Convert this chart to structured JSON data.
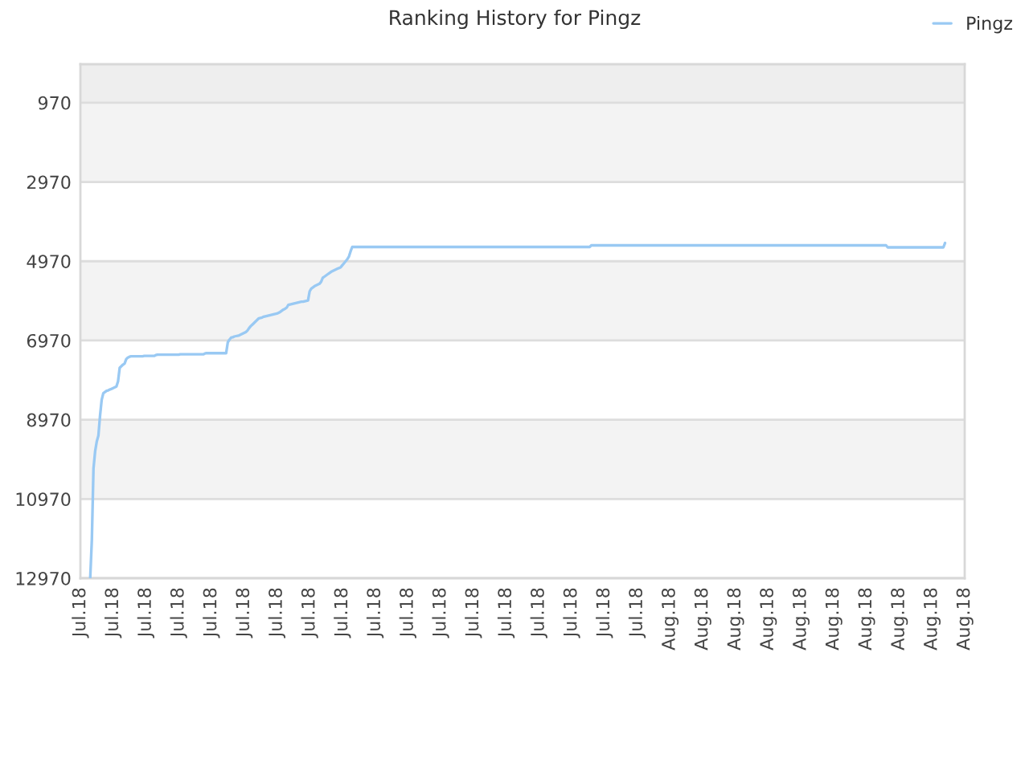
{
  "chart_data": {
    "type": "line",
    "title": "Ranking History for Pingz",
    "categories": [
      "Jul.18",
      null,
      null,
      null,
      null,
      null,
      null,
      null,
      null,
      null,
      null,
      null,
      null,
      null,
      null,
      null,
      null,
      null,
      null,
      null,
      "Jul.18",
      null,
      null,
      null,
      null,
      null,
      null,
      null,
      null,
      null,
      null,
      null,
      null,
      null,
      null,
      null,
      null,
      null,
      null,
      null,
      "Jul.18",
      null,
      null,
      null,
      null,
      null,
      null,
      null,
      null,
      null,
      null,
      null,
      null,
      null,
      null,
      null,
      null,
      null,
      null,
      null,
      "Jul.18",
      null,
      null,
      null,
      null,
      null,
      null,
      null,
      null,
      null,
      null,
      null,
      null,
      null,
      null,
      null,
      null,
      null,
      null,
      null,
      "Jul.18",
      null,
      null,
      null,
      null,
      null,
      null,
      null,
      null,
      null,
      null,
      null,
      null,
      null,
      null,
      null,
      null,
      null,
      null,
      null,
      "Jul.18",
      null,
      null,
      null,
      null,
      null,
      null,
      null,
      null,
      null,
      null,
      null,
      null,
      null,
      null,
      null,
      null,
      null,
      null,
      null,
      "Jul.18",
      null,
      null,
      null,
      null,
      null,
      null,
      null,
      null,
      null,
      null,
      null,
      null,
      null,
      null,
      null,
      null,
      null,
      null,
      null,
      "Jul.18",
      null,
      null,
      null,
      null,
      null,
      null,
      null,
      null,
      null,
      null,
      null,
      null,
      null,
      null,
      null,
      null,
      null,
      null,
      null,
      "Jul.18",
      null,
      null,
      null,
      null,
      null,
      null,
      null,
      null,
      null,
      null,
      null,
      null,
      null,
      null,
      null,
      null,
      null,
      null,
      null,
      "Jul.18",
      null,
      null,
      null,
      null,
      null,
      null,
      null,
      null,
      null,
      null,
      null,
      null,
      null,
      null,
      null,
      null,
      null,
      null,
      null,
      "Jul.18",
      null,
      null,
      null,
      null,
      null,
      null,
      null,
      null,
      null,
      null,
      null,
      null,
      null,
      null,
      null,
      null,
      null,
      null,
      null,
      "Jul.18",
      null,
      null,
      null,
      null,
      null,
      null,
      null,
      null,
      null,
      null,
      null,
      null,
      null,
      null,
      null,
      null,
      null,
      null,
      null,
      "Jul.18",
      null,
      null,
      null,
      null,
      null,
      null,
      null,
      null,
      null,
      null,
      null,
      null,
      null,
      null,
      null,
      null,
      null,
      null,
      null,
      "Jul.18",
      null,
      null,
      null,
      null,
      null,
      null,
      null,
      null,
      null,
      null,
      null,
      null,
      null,
      null,
      null,
      null,
      null,
      null,
      null,
      "Jul.18",
      null,
      null,
      null,
      null,
      null,
      null,
      null,
      null,
      null,
      null,
      null,
      null,
      null,
      null,
      null,
      null,
      null,
      null,
      null,
      "Jul.18",
      null,
      null,
      null,
      null,
      null,
      null,
      null,
      null,
      null,
      null,
      null,
      null,
      null,
      null,
      null,
      null,
      null,
      null,
      null,
      "Jul.18",
      null,
      null,
      null,
      null,
      null,
      null,
      null,
      null,
      null,
      null,
      null,
      null,
      null,
      null,
      null,
      null,
      null,
      null,
      null,
      "Jul.18",
      null,
      null,
      null,
      null,
      null,
      null,
      null,
      null,
      null,
      null,
      null,
      null,
      null,
      null,
      null,
      null,
      null,
      null,
      null,
      "Aug.18",
      null,
      null,
      null,
      null,
      null,
      null,
      null,
      null,
      null,
      null,
      null,
      null,
      null,
      null,
      null,
      null,
      null,
      null,
      null,
      "Aug.18",
      null,
      null,
      null,
      null,
      null,
      null,
      null,
      null,
      null,
      null,
      null,
      null,
      null,
      null,
      null,
      null,
      null,
      null,
      null,
      "Aug.18",
      null,
      null,
      null,
      null,
      null,
      null,
      null,
      null,
      null,
      null,
      null,
      null,
      null,
      null,
      null,
      null,
      null,
      null,
      null,
      "Aug.18",
      null,
      null,
      null,
      null,
      null,
      null,
      null,
      null,
      null,
      null,
      null,
      null,
      null,
      null,
      null,
      null,
      null,
      null,
      null,
      "Aug.18",
      null,
      null,
      null,
      null,
      null,
      null,
      null,
      null,
      null,
      null,
      null,
      null,
      null,
      null,
      null,
      null,
      null,
      null,
      null,
      "Aug.18",
      null,
      null,
      null,
      null,
      null,
      null,
      null,
      null,
      null,
      null,
      null,
      null,
      null,
      null,
      null,
      null,
      null,
      null,
      null,
      "Aug.18",
      null,
      null,
      null,
      null,
      null,
      null,
      null,
      null,
      null,
      null,
      null,
      null,
      null,
      null,
      null,
      null,
      null,
      null,
      null,
      "Aug.18",
      null,
      null,
      null,
      null,
      null,
      null,
      null,
      null,
      null,
      null,
      null,
      null,
      null,
      null,
      null,
      null,
      null,
      null,
      null,
      "Aug.18",
      null,
      null,
      null,
      null,
      null,
      null,
      null,
      null,
      null,
      null,
      null,
      null,
      null,
      null,
      null,
      null,
      null,
      null,
      null,
      "Aug.18"
    ],
    "series": [
      {
        "name": "Pingz",
        "color": "#99c9f3",
        "values": [
          null,
          null,
          null,
          null,
          null,
          null,
          12970,
          12000,
          10200,
          9770,
          9520,
          9370,
          8870,
          8470,
          8300,
          8270,
          8240,
          8230,
          8210,
          8190,
          8170,
          8150,
          8130,
          8000,
          7660,
          7620,
          7580,
          7550,
          7440,
          7400,
          7380,
          7370,
          7370,
          7370,
          7370,
          7370,
          7370,
          7370,
          7370,
          7360,
          7360,
          7360,
          7360,
          7360,
          7360,
          7360,
          7340,
          7330,
          7330,
          7330,
          7330,
          7330,
          7330,
          7330,
          7330,
          7330,
          7330,
          7330,
          7330,
          7330,
          7330,
          7320,
          7320,
          7320,
          7320,
          7320,
          7320,
          7320,
          7320,
          7320,
          7320,
          7320,
          7320,
          7320,
          7320,
          7320,
          7300,
          7290,
          7290,
          7290,
          7290,
          7290,
          7290,
          7290,
          7290,
          7290,
          7290,
          7290,
          7290,
          7290,
          7020,
          6950,
          6900,
          6890,
          6870,
          6860,
          6850,
          6840,
          6820,
          6800,
          6780,
          6760,
          6720,
          6660,
          6610,
          6570,
          6530,
          6490,
          6450,
          6410,
          6400,
          6390,
          6370,
          6360,
          6350,
          6340,
          6330,
          6320,
          6310,
          6300,
          6290,
          6270,
          6250,
          6220,
          6190,
          6170,
          6140,
          6070,
          6060,
          6050,
          6040,
          6030,
          6020,
          6010,
          6000,
          5990,
          5990,
          5980,
          5970,
          5960,
          5730,
          5660,
          5630,
          5600,
          5580,
          5560,
          5540,
          5490,
          5390,
          5360,
          5330,
          5300,
          5270,
          5240,
          5220,
          5200,
          5180,
          5160,
          5140,
          5120,
          5070,
          5020,
          4970,
          4920,
          4850,
          4720,
          4610,
          4610,
          4610,
          4610,
          4610,
          4610,
          4610,
          4610,
          4610,
          4610,
          4610,
          4610,
          4610,
          4610,
          4610,
          4610,
          4610,
          4610,
          4610,
          4610,
          4610,
          4610,
          4610,
          4610,
          4610,
          4610,
          4610,
          4610,
          4610,
          4610,
          4610,
          4610,
          4610,
          4610,
          4610,
          4610,
          4610,
          4610,
          4610,
          4610,
          4610,
          4610,
          4610,
          4610,
          4610,
          4610,
          4610,
          4610,
          4610,
          4610,
          4610,
          4610,
          4610,
          4610,
          4610,
          4610,
          4610,
          4610,
          4610,
          4610,
          4610,
          4610,
          4610,
          4610,
          4610,
          4610,
          4610,
          4610,
          4610,
          4610,
          4610,
          4610,
          4610,
          4610,
          4610,
          4610,
          4610,
          4610,
          4610,
          4610,
          4610,
          4610,
          4610,
          4610,
          4610,
          4610,
          4610,
          4610,
          4610,
          4610,
          4610,
          4610,
          4610,
          4610,
          4610,
          4610,
          4610,
          4610,
          4610,
          4610,
          4610,
          4610,
          4610,
          4610,
          4610,
          4610,
          4610,
          4610,
          4610,
          4610,
          4610,
          4610,
          4610,
          4610,
          4610,
          4610,
          4610,
          4610,
          4610,
          4610,
          4610,
          4610,
          4610,
          4610,
          4610,
          4610,
          4610,
          4610,
          4610,
          4610,
          4610,
          4610,
          4610,
          4610,
          4610,
          4610,
          4610,
          4610,
          4610,
          4610,
          4610,
          4610,
          4610,
          4610,
          4610,
          4610,
          4570,
          4570,
          4570,
          4570,
          4570,
          4570,
          4570,
          4570,
          4570,
          4570,
          4570,
          4570,
          4570,
          4570,
          4570,
          4570,
          4570,
          4570,
          4570,
          4570,
          4570,
          4570,
          4570,
          4570,
          4570,
          4570,
          4570,
          4570,
          4570,
          4570,
          4570,
          4570,
          4570,
          4570,
          4570,
          4570,
          4570,
          4570,
          4570,
          4570,
          4570,
          4570,
          4570,
          4570,
          4570,
          4570,
          4570,
          4570,
          4570,
          4570,
          4570,
          4570,
          4570,
          4570,
          4570,
          4570,
          4570,
          4570,
          4570,
          4570,
          4570,
          4570,
          4570,
          4570,
          4570,
          4570,
          4570,
          4570,
          4570,
          4570,
          4570,
          4570,
          4570,
          4570,
          4570,
          4570,
          4570,
          4570,
          4570,
          4570,
          4570,
          4570,
          4570,
          4570,
          4570,
          4570,
          4570,
          4570,
          4570,
          4570,
          4570,
          4570,
          4570,
          4570,
          4570,
          4570,
          4570,
          4570,
          4570,
          4570,
          4570,
          4570,
          4570,
          4570,
          4570,
          4570,
          4570,
          4570,
          4570,
          4570,
          4570,
          4570,
          4570,
          4570,
          4570,
          4570,
          4570,
          4570,
          4570,
          4570,
          4570,
          4570,
          4570,
          4570,
          4570,
          4570,
          4570,
          4570,
          4570,
          4570,
          4570,
          4570,
          4570,
          4570,
          4570,
          4570,
          4570,
          4570,
          4570,
          4570,
          4570,
          4570,
          4570,
          4570,
          4570,
          4570,
          4570,
          4570,
          4570,
          4570,
          4570,
          4570,
          4570,
          4570,
          4570,
          4570,
          4570,
          4570,
          4570,
          4570,
          4570,
          4570,
          4570,
          4570,
          4570,
          4570,
          4570,
          4570,
          4570,
          4570,
          4570,
          4570,
          4570,
          4570,
          4570,
          4570,
          4570,
          4570,
          4570,
          4570,
          4570,
          4620,
          4620,
          4620,
          4620,
          4620,
          4620,
          4620,
          4620,
          4620,
          4620,
          4620,
          4620,
          4620,
          4620,
          4620,
          4620,
          4620,
          4620,
          4620,
          4620,
          4620,
          4620,
          4620,
          4620,
          4620,
          4620,
          4620,
          4620,
          4620,
          4620,
          4620,
          4620,
          4620,
          4620,
          4620,
          4510,
          null,
          null,
          null,
          null,
          null,
          null,
          null,
          null,
          null,
          null,
          null,
          null
        ]
      }
    ],
    "ylim": [
      12970,
      0
    ],
    "yticks": [
      970,
      2970,
      4970,
      6970,
      8970,
      10970,
      12970
    ],
    "bands": [
      {
        "axis": "y",
        "from": 0,
        "to": 970,
        "color": "#eeeeee"
      },
      {
        "axis": "y",
        "from": 970,
        "to": 2970,
        "color": "#f3f3f3"
      },
      {
        "axis": "y",
        "from": 4970,
        "to": 6970,
        "color": "#f3f3f3"
      },
      {
        "axis": "y",
        "from": 8970,
        "to": 10970,
        "color": "#f3f3f3"
      }
    ],
    "grid": "y",
    "legend": "top right"
  }
}
